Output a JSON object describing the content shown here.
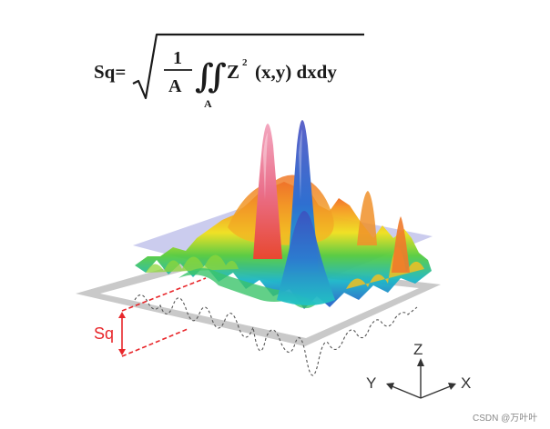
{
  "formula": {
    "lhs": "Sq=",
    "numerator": "1",
    "denominator": "A",
    "integral": "∬",
    "integral_sub": "A",
    "integrand_base": "Z",
    "integrand_exp": "2",
    "integrand_args": "(x,y) dxdy"
  },
  "surface_label": "Sq",
  "axes": {
    "z": "Z",
    "y": "Y",
    "x": "X"
  },
  "watermark": "CSDN @万叶叶",
  "colors": {
    "label_red": "#e8262a",
    "plane_gray": "#c7c7c7",
    "mean_plane": "#8b8fd9"
  }
}
